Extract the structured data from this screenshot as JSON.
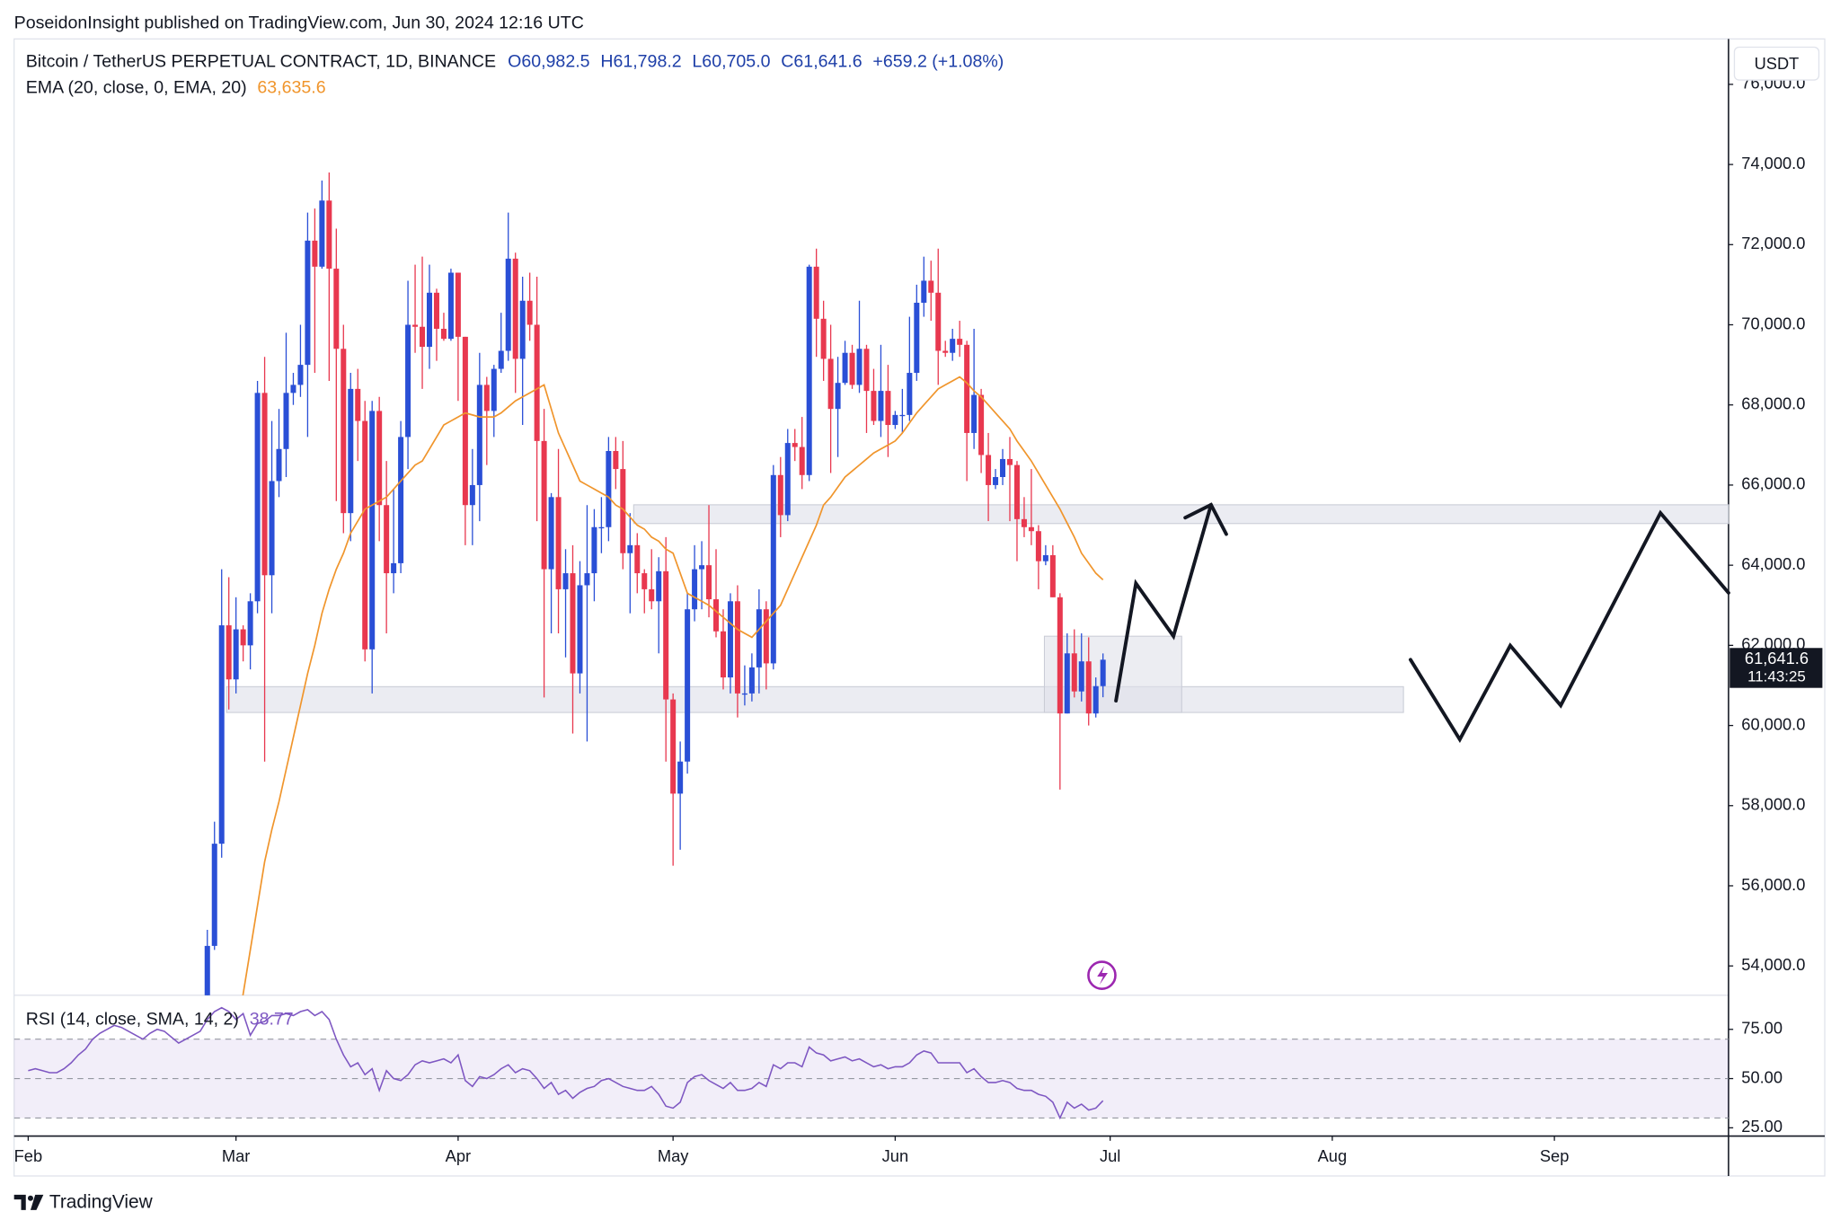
{
  "header": "PoseidonInsight published on TradingView.com, Jun 30, 2024 12:16 UTC",
  "footer": "TradingView",
  "chart_data": [
    {
      "type": "candlestick",
      "title": "Bitcoin / TetherUS PERPETUAL CONTRACT, 1D, BINANCE",
      "legend": [
        "O60,982.5",
        "H61,798.2",
        "L60,705.0",
        "C61,641.6",
        "+659.2 (+1.08%)"
      ],
      "currency": "USDT",
      "price_label": "61,641.6",
      "countdown": "11:43:25",
      "up_color": "#2a4fd6",
      "down_color": "#e8384f",
      "xlim": [
        -0.97,
        238.3
      ],
      "xticks": [
        {
          "value": 1,
          "label": "Feb"
        },
        {
          "value": 30,
          "label": "Mar"
        },
        {
          "value": 61,
          "label": "Apr"
        },
        {
          "value": 91,
          "label": "May"
        },
        {
          "value": 122,
          "label": "Jun"
        },
        {
          "value": 152,
          "label": "Jul"
        },
        {
          "value": 183,
          "label": "Aug"
        },
        {
          "value": 214,
          "label": "Sep"
        }
      ],
      "ylim": [
        53268,
        77133
      ],
      "yticks": [
        {
          "value": 54000,
          "label": "54,000.0"
        },
        {
          "value": 56000,
          "label": "56,000.0"
        },
        {
          "value": 58000,
          "label": "58,000.0"
        },
        {
          "value": 60000,
          "label": "60,000.0"
        },
        {
          "value": 62000,
          "label": "62,000.0"
        },
        {
          "value": 64000,
          "label": "64,000.0"
        },
        {
          "value": 66000,
          "label": "66,000.0"
        },
        {
          "value": 68000,
          "label": "68,000.0"
        },
        {
          "value": 70000,
          "label": "70,000.0"
        },
        {
          "value": 72000,
          "label": "72,000.0"
        },
        {
          "value": 74000,
          "label": "74,000.0"
        },
        {
          "value": 76000,
          "label": "76,000.0"
        }
      ],
      "grid": false,
      "x": [
        26,
        27,
        28,
        29,
        30,
        31,
        32,
        33,
        34,
        35,
        36,
        37,
        38,
        39,
        40,
        41,
        42,
        43,
        44,
        45,
        46,
        47,
        48,
        49,
        50,
        51,
        52,
        53,
        54,
        55,
        56,
        57,
        58,
        59,
        60,
        61,
        62,
        63,
        64,
        65,
        66,
        67,
        68,
        69,
        70,
        71,
        72,
        73,
        74,
        75,
        76,
        77,
        78,
        79,
        80,
        81,
        82,
        83,
        84,
        85,
        86,
        87,
        88,
        89,
        90,
        91,
        92,
        93,
        94,
        95,
        96,
        97,
        98,
        99,
        100,
        101,
        102,
        103,
        104,
        105,
        106,
        107,
        108,
        109,
        110,
        111,
        112,
        113,
        114,
        115,
        116,
        117,
        118,
        119,
        120,
        121,
        122,
        123,
        124,
        125,
        126,
        127,
        128,
        129,
        130,
        131,
        132,
        133,
        134,
        135,
        136,
        137,
        138,
        139,
        140,
        141,
        142,
        143,
        144,
        145,
        146,
        147,
        148,
        149,
        150,
        151
      ],
      "open": [
        51700,
        54500,
        57050,
        62500,
        61150,
        62400,
        62000,
        63100,
        68300,
        63750,
        66100,
        66900,
        68300,
        68500,
        69000,
        72100,
        71450,
        73100,
        71400,
        69400,
        65300,
        68400,
        67600,
        61900,
        67850,
        65500,
        63800,
        64050,
        67200,
        70000,
        69950,
        69450,
        70800,
        69900,
        69650,
        71300,
        69700,
        65500,
        66000,
        68500,
        67850,
        68900,
        69350,
        71650,
        69150,
        70600,
        70000,
        67100,
        63900,
        65700,
        63400,
        63800,
        61300,
        63500,
        63800,
        64950,
        64950,
        66850,
        66400,
        64300,
        64500,
        63800,
        63400,
        63100,
        63850,
        60650,
        58300,
        59100,
        62900,
        63900,
        64000,
        63150,
        62350,
        61200,
        63100,
        60800,
        60800,
        61450,
        62900,
        61550,
        66250,
        65250,
        67050,
        66950,
        66250,
        71450,
        70150,
        69150,
        67900,
        68550,
        69300,
        68500,
        69400,
        68350,
        67600,
        68350,
        67500,
        67750,
        67750,
        68800,
        70550,
        71100,
        70800,
        69350,
        69300,
        69650,
        69500,
        67300,
        68250,
        66750,
        66000,
        66200,
        66650,
        66500,
        65150,
        64950,
        64850,
        64100,
        64250,
        63200,
        60300,
        61800,
        60850,
        61600,
        60300,
        60982.5
      ],
      "high": [
        54900,
        57600,
        63900,
        63700,
        63200,
        62500,
        63300,
        68600,
        69200,
        67600,
        67900,
        69800,
        68800,
        70000,
        72800,
        72900,
        73600,
        73800,
        72400,
        70000,
        68800,
        68900,
        68100,
        68100,
        68200,
        66600,
        65900,
        67600,
        71100,
        71500,
        71700,
        71500,
        70900,
        70300,
        71400,
        71300,
        69700,
        66900,
        69300,
        68700,
        69000,
        70300,
        72800,
        71800,
        71200,
        71300,
        71200,
        67900,
        65800,
        66900,
        64400,
        64500,
        64100,
        65500,
        65400,
        65700,
        67200,
        67200,
        67100,
        65300,
        64800,
        63900,
        64400,
        64200,
        64700,
        60800,
        59600,
        63300,
        64500,
        64600,
        65500,
        64400,
        62900,
        63300,
        63500,
        61500,
        61800,
        63400,
        63100,
        66500,
        66700,
        67400,
        67400,
        67700,
        71500,
        71900,
        70600,
        70000,
        69200,
        69600,
        69500,
        70600,
        69500,
        68900,
        69500,
        69000,
        67850,
        68400,
        70200,
        71000,
        71700,
        71600,
        71900,
        69600,
        69900,
        70100,
        69600,
        69900,
        68400,
        67300,
        66400,
        66900,
        67200,
        66600,
        65700,
        66400,
        65000,
        64500,
        64500,
        63300,
        62300,
        62400,
        62300,
        62200,
        61200,
        61798.2
      ],
      "low": [
        50900,
        54400,
        56700,
        60400,
        60800,
        61600,
        61400,
        62800,
        59100,
        62800,
        65700,
        66200,
        68000,
        68200,
        67200,
        68800,
        71400,
        68600,
        65600,
        64800,
        64600,
        66600,
        61600,
        60800,
        64600,
        62300,
        63300,
        63800,
        66400,
        69300,
        68400,
        68900,
        69100,
        69600,
        69600,
        68100,
        64500,
        64500,
        65100,
        66500,
        67200,
        68800,
        69100,
        68300,
        67500,
        69600,
        65100,
        60700,
        62300,
        62300,
        61700,
        59800,
        60800,
        59600,
        63100,
        64300,
        64600,
        65900,
        63900,
        62800,
        63300,
        62800,
        62900,
        61800,
        59100,
        56500,
        56900,
        58800,
        62600,
        62900,
        62700,
        62200,
        60900,
        60800,
        60200,
        60500,
        60600,
        60800,
        60900,
        61400,
        64700,
        65100,
        66600,
        65900,
        66100,
        69200,
        68600,
        66300,
        66700,
        68500,
        68400,
        68300,
        67300,
        67500,
        67200,
        66700,
        67400,
        67300,
        67600,
        68600,
        70200,
        70100,
        68500,
        69200,
        69100,
        69200,
        66100,
        66900,
        66300,
        65100,
        65900,
        66000,
        65100,
        64100,
        64700,
        64500,
        63400,
        64000,
        63200,
        58400,
        60300,
        60700,
        60600,
        60000,
        60200,
        60705
      ],
      "close": [
        54500,
        57050,
        62500,
        61150,
        62400,
        62000,
        63100,
        68300,
        63750,
        66100,
        66900,
        68300,
        68500,
        69000,
        72100,
        71450,
        73100,
        71400,
        69400,
        65300,
        68400,
        67600,
        61900,
        67850,
        65500,
        63800,
        64050,
        67200,
        70000,
        69950,
        69450,
        70800,
        69900,
        69650,
        71300,
        69700,
        65500,
        66000,
        68500,
        67850,
        68900,
        69350,
        71650,
        69150,
        70600,
        70000,
        67100,
        63900,
        65700,
        63400,
        63800,
        61300,
        63500,
        63800,
        64950,
        64950,
        66850,
        66400,
        64300,
        64500,
        63800,
        63400,
        63100,
        63850,
        60650,
        58300,
        59100,
        62900,
        63900,
        64000,
        63150,
        62350,
        61200,
        63100,
        60800,
        60800,
        61450,
        62900,
        61550,
        66250,
        65250,
        67050,
        66950,
        66250,
        71450,
        70150,
        69150,
        67900,
        68550,
        69300,
        68500,
        69400,
        68350,
        67600,
        68350,
        67500,
        67750,
        67750,
        68800,
        70550,
        71100,
        70800,
        69350,
        69300,
        69650,
        69500,
        67300,
        68250,
        66750,
        66000,
        66200,
        66650,
        66500,
        65150,
        64950,
        64850,
        64100,
        64250,
        63200,
        60300,
        61800,
        60850,
        61600,
        60300,
        60982.5,
        61641.6
      ],
      "overlays": [
        {
          "name": "EMA (20, close, 0, EMA, 20)",
          "value_label": "63,635.6",
          "color": "#f0952c",
          "values": [
            47500,
            48400,
            49900,
            51200,
            52300,
            53300,
            54400,
            55500,
            56600,
            57400,
            58100,
            58900,
            59700,
            60500,
            61300,
            62000,
            62800,
            63400,
            63900,
            64300,
            64800,
            65100,
            65400,
            65500,
            65600,
            65700,
            65900,
            66100,
            66300,
            66500,
            66600,
            66900,
            67200,
            67500,
            67600,
            67700,
            67800,
            67750,
            67700,
            67700,
            67700,
            67800,
            67950,
            68100,
            68200,
            68300,
            68400,
            68500,
            67900,
            67300,
            66900,
            66500,
            66100,
            66000,
            65900,
            65800,
            65700,
            65500,
            65400,
            65200,
            65000,
            64900,
            64700,
            64600,
            64400,
            64300,
            63800,
            63300,
            63200,
            63100,
            63000,
            62850,
            62700,
            62550,
            62400,
            62300,
            62200,
            62400,
            62600,
            62800,
            63000,
            63400,
            63800,
            64200,
            64600,
            65000,
            65500,
            65700,
            65950,
            66200,
            66350,
            66500,
            66650,
            66800,
            66900,
            67000,
            67100,
            67300,
            67550,
            67800,
            68000,
            68200,
            68400,
            68500,
            68600,
            68700,
            68550,
            68350,
            68200,
            68000,
            67800,
            67600,
            67400,
            67100,
            66850,
            66600,
            66300,
            66000,
            65700,
            65400,
            65050,
            64700,
            64300,
            64050,
            63800,
            63635.6
          ]
        }
      ]
    },
    {
      "type": "line",
      "ylim": [
        20.8,
        92.3
      ],
      "yticks": [
        {
          "value": 25,
          "label": "25.00"
        },
        {
          "value": 50,
          "label": "50.00"
        },
        {
          "value": 75,
          "label": "75.00"
        }
      ],
      "bands": [
        30,
        50,
        70
      ],
      "band_color": "#7e57c2",
      "series": [
        {
          "name": "RSI (14, close, SMA, 14, 2)",
          "value_label": "38.77",
          "color": "#7e57c2",
          "x": [
            1,
            2,
            3,
            4,
            5,
            6,
            7,
            8,
            9,
            10,
            11,
            12,
            13,
            14,
            15,
            16,
            17,
            18,
            19,
            20,
            21,
            22,
            23,
            24,
            25,
            26,
            27,
            28,
            29,
            30,
            31,
            32,
            33,
            34,
            35,
            36,
            37,
            38,
            39,
            40,
            41,
            42,
            43,
            44,
            45,
            46,
            47,
            48,
            49,
            50,
            51,
            52,
            53,
            54,
            55,
            56,
            57,
            58,
            59,
            60,
            61,
            62,
            63,
            64,
            65,
            66,
            67,
            68,
            69,
            70,
            71,
            72,
            73,
            74,
            75,
            76,
            77,
            78,
            79,
            80,
            81,
            82,
            83,
            84,
            85,
            86,
            87,
            88,
            89,
            90,
            91,
            92,
            93,
            94,
            95,
            96,
            97,
            98,
            99,
            100,
            101,
            102,
            103,
            104,
            105,
            106,
            107,
            108,
            109,
            110,
            111,
            112,
            113,
            114,
            115,
            116,
            117,
            118,
            119,
            120,
            121,
            122,
            123,
            124,
            125,
            126,
            127,
            128,
            129,
            130,
            131,
            132,
            133,
            134,
            135,
            136,
            137,
            138,
            139,
            140,
            141,
            142,
            143,
            144,
            145,
            146,
            147,
            148,
            149,
            150,
            151
          ],
          "values": [
            54,
            55,
            54,
            53,
            53,
            55,
            58,
            62,
            65,
            70,
            73,
            75,
            77,
            76,
            74,
            72,
            70,
            73,
            75,
            74,
            71,
            68,
            70,
            72,
            74,
            80,
            84,
            86,
            84,
            80,
            83,
            72,
            78,
            79,
            82,
            82,
            83,
            82,
            84,
            85,
            82,
            84,
            80,
            70,
            62,
            56,
            58,
            52,
            55,
            44,
            54,
            50,
            49,
            52,
            57,
            59,
            58,
            59,
            60,
            58,
            62,
            49,
            46,
            51,
            50,
            52,
            55,
            57,
            53,
            55,
            54,
            50,
            45,
            48,
            42,
            44,
            40,
            43,
            45,
            46,
            49,
            50,
            48,
            46,
            45,
            44,
            44,
            46,
            42,
            36,
            35,
            38,
            48,
            51,
            52,
            49,
            47,
            45,
            48,
            44,
            44,
            45,
            48,
            46,
            57,
            55,
            58,
            58,
            56,
            66,
            63,
            62,
            59,
            60,
            61,
            59,
            60,
            58,
            56,
            57,
            55,
            56,
            56,
            58,
            62,
            64,
            63,
            58,
            58,
            58,
            58,
            53,
            55,
            51,
            48,
            48,
            49,
            48,
            45,
            44,
            44,
            42,
            41,
            38,
            30,
            38,
            35,
            37,
            34,
            35,
            38.77
          ]
        }
      ]
    }
  ]
}
